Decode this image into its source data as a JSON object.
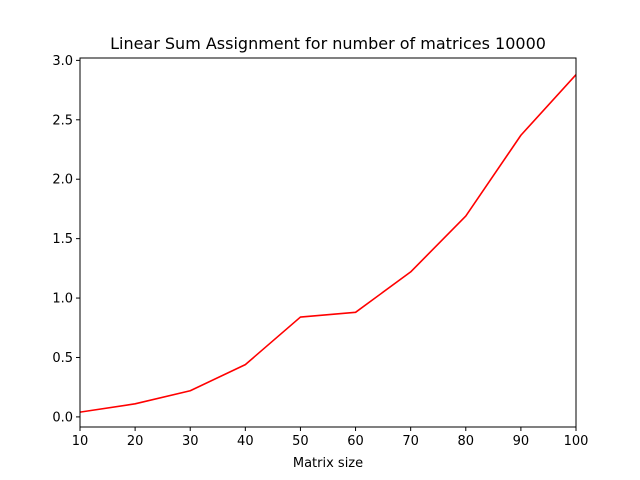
{
  "chart_data": {
    "type": "line",
    "title": "Linear Sum Assignment for number of matrices 10000",
    "xlabel": "Matrix size",
    "ylabel": "",
    "x": [
      10,
      20,
      30,
      40,
      50,
      60,
      70,
      80,
      90,
      100
    ],
    "series": [
      {
        "values": [
          0.04,
          0.11,
          0.22,
          0.44,
          0.84,
          0.88,
          1.22,
          1.69,
          2.37,
          2.88
        ],
        "color": "#ff0000"
      }
    ],
    "xlim": [
      10,
      100
    ],
    "ylim": [
      -0.085,
      3.02
    ],
    "xticks": [
      10,
      20,
      30,
      40,
      50,
      60,
      70,
      80,
      90,
      100
    ],
    "yticks": [
      0.0,
      0.5,
      1.0,
      1.5,
      2.0,
      2.5,
      3.0
    ],
    "xtick_labels": [
      "10",
      "20",
      "30",
      "40",
      "50",
      "60",
      "70",
      "80",
      "90",
      "100"
    ],
    "ytick_labels": [
      "0.0",
      "0.5",
      "1.0",
      "1.5",
      "2.0",
      "2.5",
      "3.0"
    ],
    "grid": false,
    "legend": "none"
  }
}
